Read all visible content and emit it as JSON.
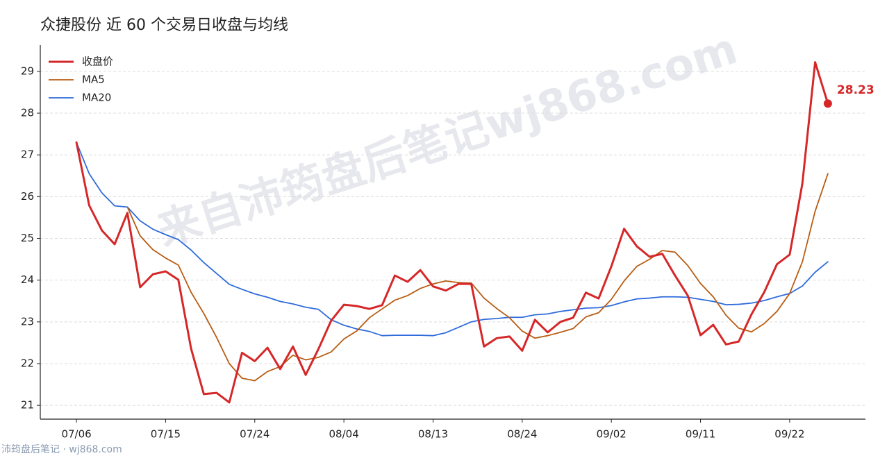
{
  "chart_data": {
    "type": "line",
    "title": "众捷股份 近 60 个交易日收盘与均线",
    "watermark": "来自沛筠盘后笔记wj868.com",
    "footer": "沛筠盘后笔记 · wj868.com",
    "categories": [
      "07/06",
      null,
      null,
      null,
      null,
      null,
      null,
      "07/15",
      null,
      null,
      null,
      null,
      null,
      null,
      "07/24",
      null,
      null,
      null,
      null,
      null,
      null,
      "08/04",
      null,
      null,
      null,
      null,
      null,
      null,
      "08/13",
      null,
      null,
      null,
      null,
      null,
      null,
      "08/24",
      null,
      null,
      null,
      null,
      null,
      null,
      "09/02",
      null,
      null,
      null,
      null,
      null,
      null,
      "09/11",
      null,
      null,
      null,
      null,
      null,
      null,
      "09/22",
      null,
      null,
      null
    ],
    "series": [
      {
        "name": "收盘价",
        "color": "#d62728",
        "linewidth": 3,
        "values": [
          27.3,
          25.79,
          25.19,
          24.86,
          25.61,
          23.83,
          24.14,
          24.21,
          24.01,
          22.36,
          21.27,
          21.3,
          21.07,
          22.26,
          22.06,
          22.38,
          21.87,
          22.41,
          21.73,
          22.35,
          23.03,
          23.41,
          23.38,
          23.31,
          23.4,
          24.11,
          23.96,
          24.24,
          23.85,
          23.75,
          23.91,
          23.91,
          22.41,
          22.61,
          22.65,
          22.31,
          23.05,
          22.75,
          23.0,
          23.1,
          23.7,
          23.56,
          24.33,
          25.23,
          24.81,
          24.56,
          24.63,
          24.11,
          23.63,
          22.68,
          22.93,
          22.46,
          22.53,
          23.18,
          23.71,
          24.38,
          24.61,
          26.32,
          29.22,
          28.23
        ]
      },
      {
        "name": "MA5",
        "color": "#b85c12",
        "linewidth": 1.8,
        "values": [
          null,
          null,
          null,
          null,
          25.75,
          25.06,
          24.73,
          24.53,
          24.36,
          23.71,
          23.2,
          22.63,
          22.0,
          21.65,
          21.59,
          21.81,
          21.93,
          22.2,
          22.09,
          22.15,
          22.28,
          22.59,
          22.78,
          23.1,
          23.31,
          23.52,
          23.63,
          23.8,
          23.91,
          23.98,
          23.94,
          23.93,
          23.57,
          23.32,
          23.1,
          22.78,
          22.61,
          22.67,
          22.75,
          22.84,
          23.12,
          23.22,
          23.54,
          23.98,
          24.33,
          24.5,
          24.71,
          24.67,
          24.35,
          23.92,
          23.6,
          23.16,
          22.85,
          22.76,
          22.96,
          23.25,
          23.68,
          24.44,
          25.65,
          26.55
        ]
      },
      {
        "name": "MA20",
        "color": "#2f6bdb",
        "linewidth": 1.8,
        "values": [
          27.3,
          26.55,
          26.09,
          25.78,
          25.75,
          25.42,
          25.22,
          25.09,
          24.97,
          24.72,
          24.42,
          24.16,
          23.9,
          23.78,
          23.67,
          23.59,
          23.49,
          23.43,
          23.35,
          23.3,
          23.05,
          22.92,
          22.83,
          22.77,
          22.67,
          22.68,
          22.68,
          22.68,
          22.67,
          22.74,
          22.87,
          23.0,
          23.06,
          23.08,
          23.11,
          23.11,
          23.17,
          23.19,
          23.25,
          23.29,
          23.33,
          23.34,
          23.39,
          23.48,
          23.55,
          23.57,
          23.6,
          23.6,
          23.59,
          23.54,
          23.49,
          23.41,
          23.42,
          23.45,
          23.51,
          23.6,
          23.68,
          23.86,
          24.19,
          24.44
        ]
      }
    ],
    "ylim": [
      20.67,
      29.63
    ],
    "yticks": [
      21,
      22,
      23,
      24,
      25,
      26,
      27,
      28,
      29
    ],
    "grid": true,
    "legend": "upper left"
  }
}
